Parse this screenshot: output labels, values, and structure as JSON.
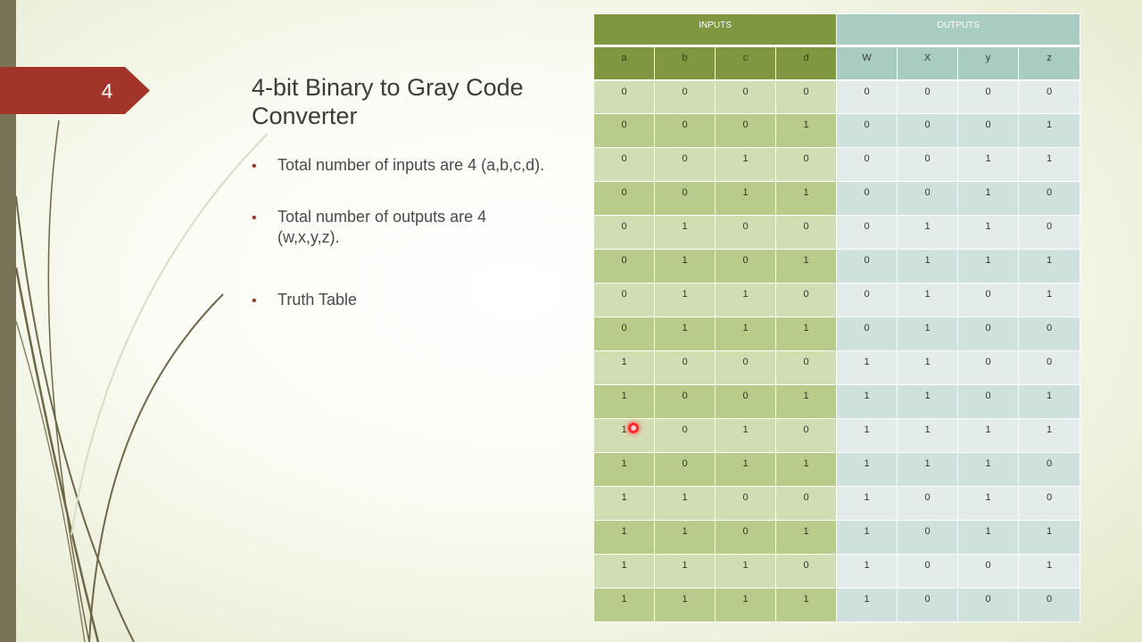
{
  "slide": {
    "number": "4",
    "title": "4-bit Binary to Gray Code Converter",
    "bullets": [
      "Total number of inputs are 4 (a,b,c,d).",
      "Total number of outputs are 4 (w,x,y,z).",
      "Truth Table"
    ]
  },
  "table": {
    "inputs_label": "INPUTS",
    "outputs_label": "OUTPUTS",
    "columns": [
      "a",
      "b",
      "c",
      "d",
      "W",
      "X",
      "y",
      "z"
    ],
    "rows": [
      [
        "0",
        "0",
        "0",
        "0",
        "0",
        "0",
        "0",
        "0"
      ],
      [
        "0",
        "0",
        "0",
        "1",
        "0",
        "0",
        "0",
        "1"
      ],
      [
        "0",
        "0",
        "1",
        "0",
        "0",
        "0",
        "1",
        "1"
      ],
      [
        "0",
        "0",
        "1",
        "1",
        "0",
        "0",
        "1",
        "0"
      ],
      [
        "0",
        "1",
        "0",
        "0",
        "0",
        "1",
        "1",
        "0"
      ],
      [
        "0",
        "1",
        "0",
        "1",
        "0",
        "1",
        "1",
        "1"
      ],
      [
        "0",
        "1",
        "1",
        "0",
        "0",
        "1",
        "0",
        "1"
      ],
      [
        "0",
        "1",
        "1",
        "1",
        "0",
        "1",
        "0",
        "0"
      ],
      [
        "1",
        "0",
        "0",
        "0",
        "1",
        "1",
        "0",
        "0"
      ],
      [
        "1",
        "0",
        "0",
        "1",
        "1",
        "1",
        "0",
        "1"
      ],
      [
        "1",
        "0",
        "1",
        "0",
        "1",
        "1",
        "1",
        "1"
      ],
      [
        "1",
        "0",
        "1",
        "1",
        "1",
        "1",
        "1",
        "0"
      ],
      [
        "1",
        "1",
        "0",
        "0",
        "1",
        "0",
        "1",
        "0"
      ],
      [
        "1",
        "1",
        "0",
        "1",
        "1",
        "0",
        "1",
        "1"
      ],
      [
        "1",
        "1",
        "1",
        "0",
        "1",
        "0",
        "0",
        "1"
      ],
      [
        "1",
        "1",
        "1",
        "1",
        "1",
        "0",
        "0",
        "0"
      ]
    ]
  },
  "colors": {
    "accent_tab": "#a3342a",
    "inputs_header": "#7e9740",
    "outputs_header": "#a8cbc2",
    "left_bar": "#7b7358"
  }
}
